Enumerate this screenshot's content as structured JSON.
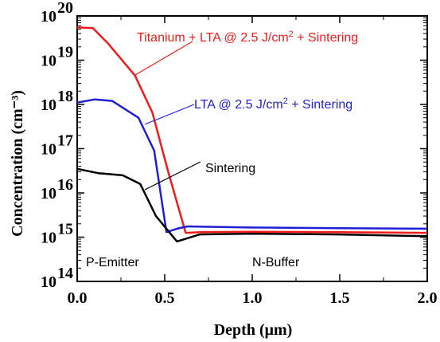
{
  "chart_data": {
    "type": "line",
    "xlabel": "Depth (μm)",
    "ylabel": "Concentration  (cm⁻³)",
    "xlim": [
      0,
      2.0
    ],
    "ylim": [
      100000000000000.0,
      1e+20
    ],
    "y_scale": "log",
    "grid": false,
    "x_ticks": [
      "0.0",
      "0.5",
      "1.0",
      "1.5",
      "2.0"
    ],
    "y_ticks": [
      {
        "base": "10",
        "exp": "14"
      },
      {
        "base": "10",
        "exp": "15"
      },
      {
        "base": "10",
        "exp": "16"
      },
      {
        "base": "10",
        "exp": "17"
      },
      {
        "base": "10",
        "exp": "18"
      },
      {
        "base": "10",
        "exp": "19"
      },
      {
        "base": "10",
        "exp": "20"
      }
    ],
    "series": [
      {
        "name": "Titanium + LTA @ 2.5 J/cm² + Sintering",
        "color": "#ee1c1c",
        "x": [
          0.0,
          0.09,
          0.18,
          0.33,
          0.43,
          0.52,
          0.62,
          0.7,
          1.0,
          1.5,
          2.0
        ],
        "y": [
          5.5e+19,
          5.3e+19,
          2.3e+19,
          4.5e+18,
          6.5e+17,
          3e+16,
          1250000000000000.0,
          1300000000000000.0,
          1320000000000000.0,
          1300000000000000.0,
          1250000000000000.0
        ]
      },
      {
        "name": "LTA @ 2.5 J/cm² + Sintering",
        "color": "#1f1fd6",
        "x": [
          0.0,
          0.1,
          0.2,
          0.35,
          0.44,
          0.51,
          0.57,
          0.63,
          1.0,
          1.5,
          2.0
        ],
        "y": [
          1.1e+18,
          1.3e+18,
          1.2e+18,
          5e+17,
          9e+16,
          1300000000000000.0,
          1550000000000000.0,
          1750000000000000.0,
          1650000000000000.0,
          1600000000000000.0,
          1550000000000000.0
        ]
      },
      {
        "name": "Sintering",
        "color": "#000000",
        "x": [
          0.0,
          0.12,
          0.26,
          0.36,
          0.45,
          0.57,
          0.7,
          1.0,
          1.5,
          2.0
        ],
        "y": [
          3.5e+16,
          2.8e+16,
          2.5e+16,
          1.6e+16,
          3000000000000000.0,
          800000000000000.0,
          1150000000000000.0,
          1200000000000000.0,
          1150000000000000.0,
          1050000000000000.0
        ]
      }
    ],
    "annotations": [
      {
        "text": "Titanium + LTA @ 2.5 J/cm",
        "sup": "2",
        "tail": " + Sintering",
        "color": "#ee1c1c"
      },
      {
        "text": "LTA @ 2.5 J/cm",
        "sup": "2",
        "tail": " + Sintering",
        "color": "#1f1fd6"
      },
      {
        "text": "Sintering",
        "sup": "",
        "tail": "",
        "color": "#000000"
      }
    ],
    "regions": [
      "P-Emitter",
      "N-Buffer"
    ]
  }
}
